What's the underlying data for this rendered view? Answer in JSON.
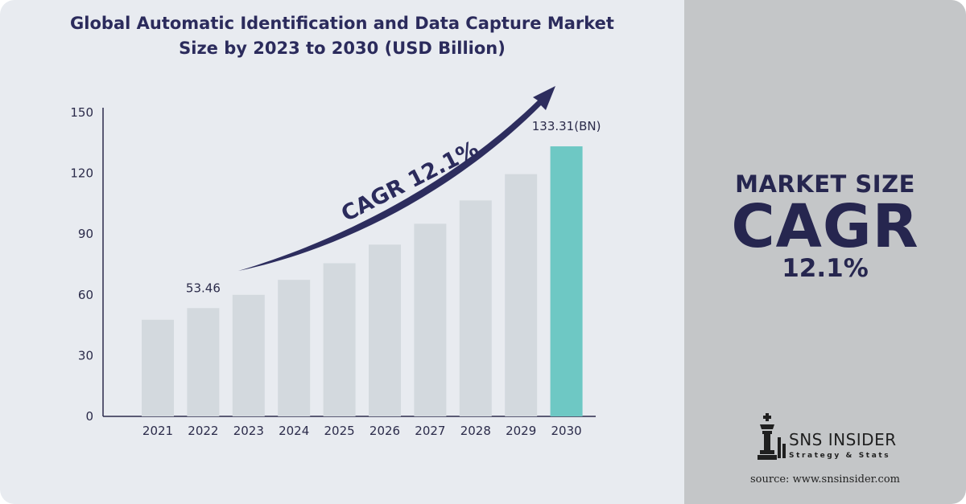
{
  "title_line1": "Global Automatic Identification and Data Capture Market",
  "title_line2": "Size by 2023 to 2030 (USD Billion)",
  "chart_data": {
    "type": "bar",
    "categories": [
      "2021",
      "2022",
      "2023",
      "2024",
      "2025",
      "2026",
      "2027",
      "2028",
      "2029",
      "2030"
    ],
    "values": [
      47.7,
      53.46,
      60.0,
      67.4,
      75.6,
      84.8,
      95.1,
      106.6,
      119.6,
      133.31
    ],
    "ylim": [
      0,
      150
    ],
    "yticks": [
      0,
      30,
      60,
      90,
      120,
      150
    ],
    "data_labels": [
      {
        "index": 1,
        "text": "53.46"
      },
      {
        "index": 9,
        "text": "133.31(BN)"
      }
    ],
    "annotation": "CAGR 12.1%",
    "grid": false,
    "colors": {
      "default": "#d3d9de",
      "highlight": "#6ec8c4",
      "axis": "#2b2b4a",
      "arrow": "#2d2d5e"
    },
    "highlight_index": 9
  },
  "side_panel": {
    "line1": "MARKET SIZE",
    "line2": "CAGR",
    "line3": "12.1%"
  },
  "logo": {
    "name": "SNS INSIDER",
    "tagline": "Strategy & Stats"
  },
  "source": "source: www.snsinsider.com"
}
